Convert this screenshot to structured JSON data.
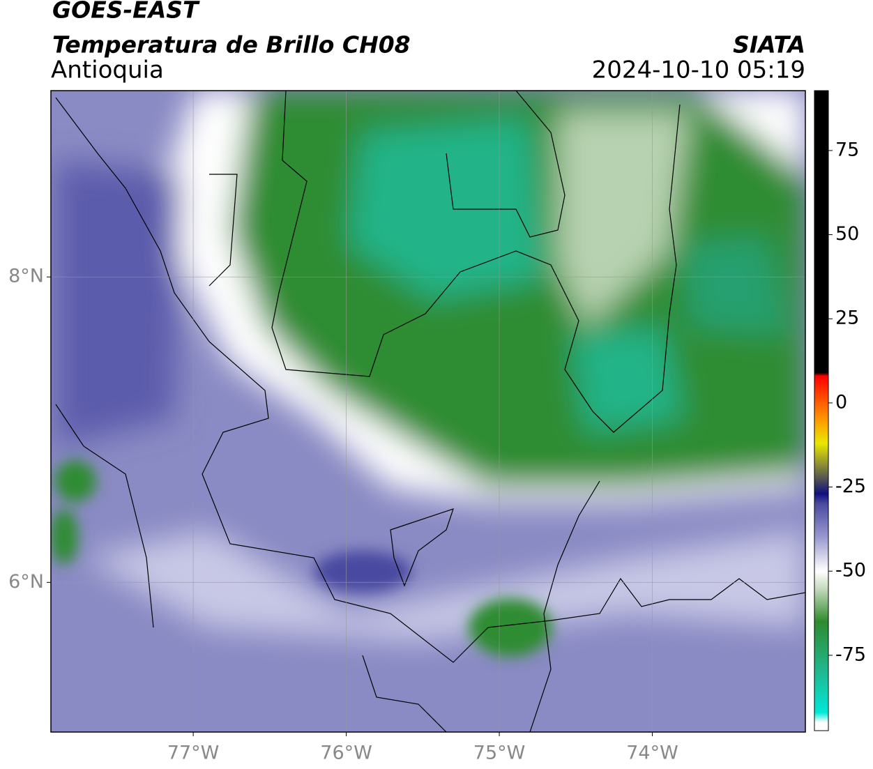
{
  "chart_data": {
    "type": "map",
    "title": "GOES-EAST",
    "subtitle": "Temperatura de Brillo CH08",
    "region": "Antioquia",
    "source": "SIATA",
    "datetime": "2024-10-10 05:19",
    "xlim": [
      -77.93,
      -73.0
    ],
    "ylim": [
      5.02,
      9.22
    ],
    "xticks": [
      {
        "value": -77,
        "label": "77°W"
      },
      {
        "value": -76,
        "label": "76°W"
      },
      {
        "value": -75,
        "label": "75°W"
      },
      {
        "value": -74,
        "label": "74°W"
      }
    ],
    "yticks": [
      {
        "value": 6,
        "label": "6°N"
      },
      {
        "value": 8,
        "label": "8°N"
      }
    ],
    "grid": true,
    "colorbar": {
      "lim": [
        -97.4,
        92.8
      ],
      "ticks": [
        -75,
        -50,
        -25,
        0,
        25,
        50,
        75
      ],
      "stops": [
        {
          "value": -95,
          "color": "#ffffff"
        },
        {
          "value": -92,
          "color": "#00e8d8"
        },
        {
          "value": -80,
          "color": "#20b890"
        },
        {
          "value": -65,
          "color": "#2e8b2e"
        },
        {
          "value": -55,
          "color": "#c8dcc0"
        },
        {
          "value": -50,
          "color": "#ffffff"
        },
        {
          "value": -40,
          "color": "#9a9ad0"
        },
        {
          "value": -30,
          "color": "#4a4aa0"
        },
        {
          "value": -27,
          "color": "#101080"
        },
        {
          "value": -22,
          "color": "#5a5a50"
        },
        {
          "value": -12,
          "color": "#e8e800"
        },
        {
          "value": -5,
          "color": "#ff9900"
        },
        {
          "value": 8,
          "color": "#ff0000"
        },
        {
          "value": 9,
          "color": "#000000"
        }
      ]
    }
  }
}
